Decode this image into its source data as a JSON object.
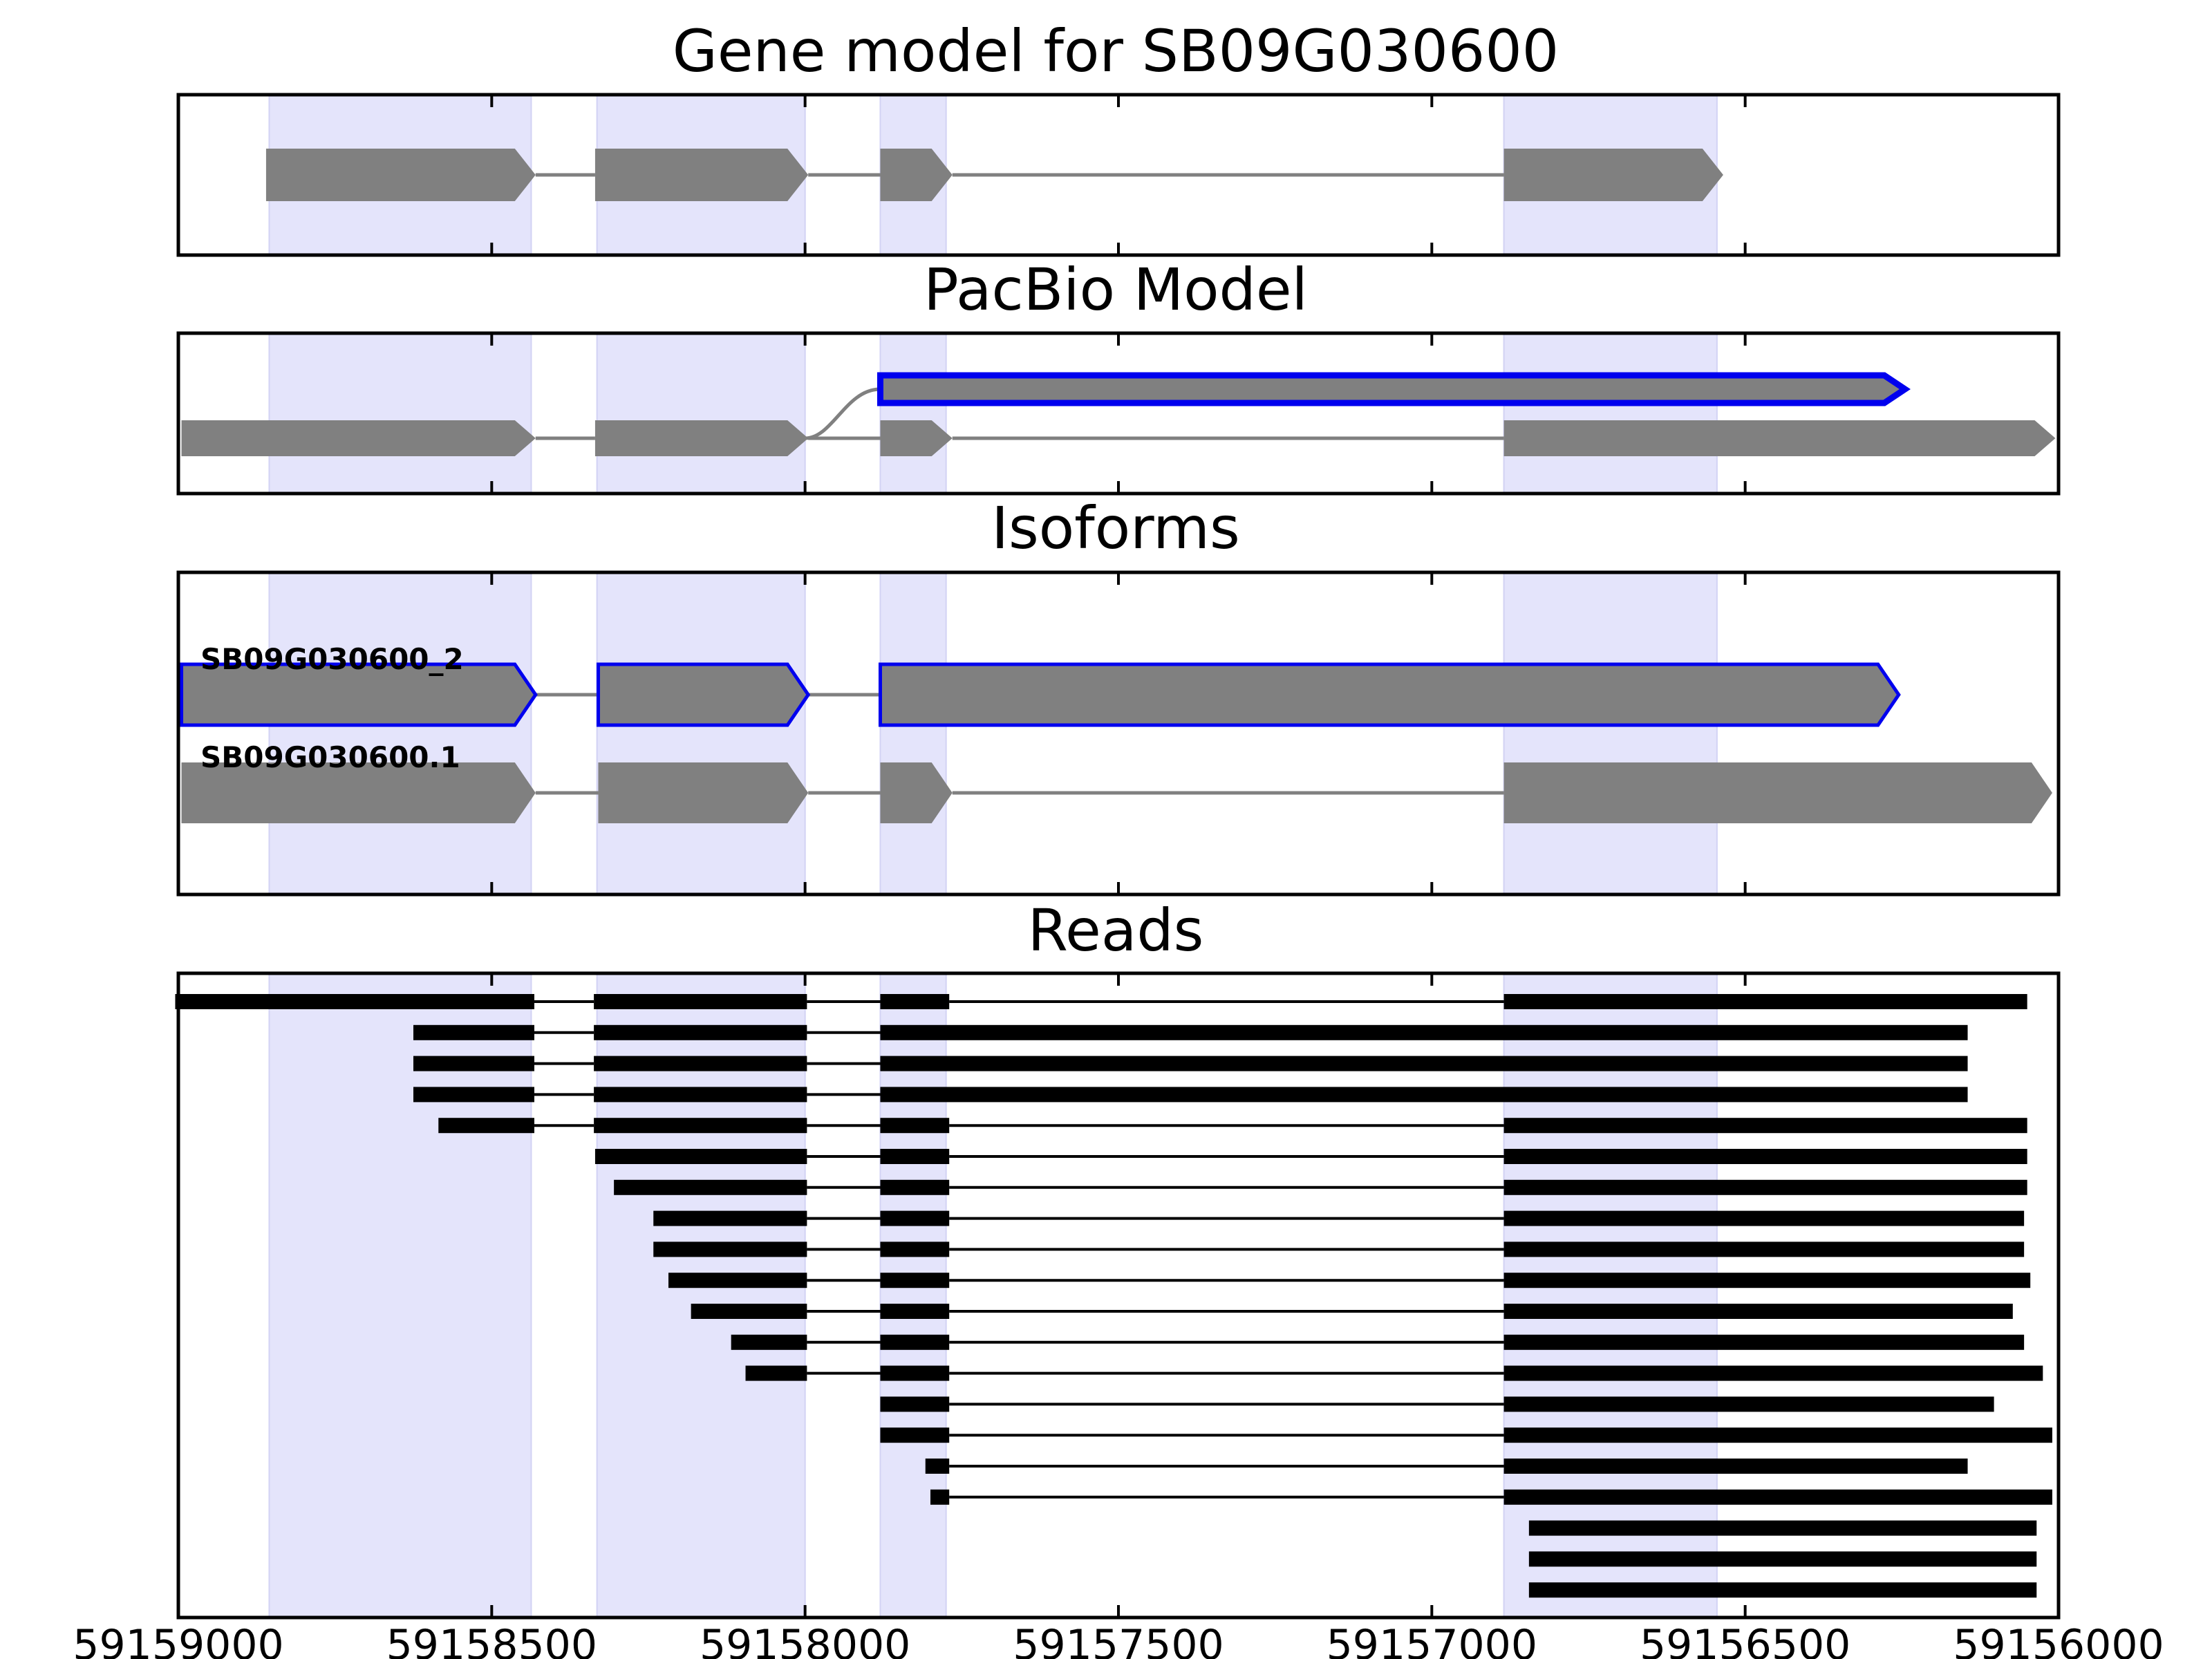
{
  "chart_data": {
    "type": "gene-model",
    "colors": {
      "feature": "#808080",
      "highlight_stroke": "#0000ee",
      "exon_band": "#e4e4fb",
      "read": "#000000",
      "intron": "#808080"
    },
    "xlim": [
      59159000,
      59156000
    ],
    "x_ticks": [
      59159000,
      59158500,
      59158000,
      59157500,
      59157000,
      59156500,
      59156000
    ],
    "x_tick_labels": [
      "59159000",
      "59158500",
      "59158000",
      "59157500",
      "59157000",
      "59156500",
      "59156000"
    ],
    "exon_bands": [
      [
        59158855,
        59158437
      ],
      [
        59158332,
        59158000
      ],
      [
        59157880,
        59157775
      ],
      [
        59156885,
        59156545
      ]
    ],
    "panels": [
      {
        "title": "Gene model for SB09G030600",
        "tracks": [
          {
            "exons": [
              [
                59158860,
                59158430
              ],
              [
                59158335,
                59157995
              ],
              [
                59157880,
                59157765
              ],
              [
                59156885,
                59156535
              ]
            ]
          }
        ]
      },
      {
        "title": "PacBio Model",
        "tracks": [
          {
            "exons": [
              [
                59157880,
                59156245
              ]
            ],
            "highlight": true,
            "curve_from": 59158000
          },
          {
            "exons": [
              [
                59158995,
                59158430
              ],
              [
                59158335,
                59157995
              ],
              [
                59157880,
                59157765
              ],
              [
                59156885,
                59156005
              ]
            ]
          }
        ]
      },
      {
        "title": "Isoforms",
        "tracks": [
          {
            "label": "SB09G030600_2",
            "exons": [
              [
                59158995,
                59158430
              ],
              [
                59158330,
                59157995
              ],
              [
                59157880,
                59156255
              ]
            ],
            "highlight": true
          },
          {
            "label": "SB09G030600.1",
            "exons": [
              [
                59158995,
                59158430
              ],
              [
                59158330,
                59157995
              ],
              [
                59157880,
                59157765
              ],
              [
                59156885,
                59156010
              ]
            ]
          }
        ]
      },
      {
        "title": "Reads",
        "reads": [
          [
            [
              59159005,
              59158432
            ],
            [
              59158337,
              59157997
            ],
            [
              59157880,
              59157770
            ],
            [
              59156885,
              59156050
            ]
          ],
          [
            [
              59158625,
              59158432
            ],
            [
              59158337,
              59157997
            ],
            [
              59157880,
              59156145
            ]
          ],
          [
            [
              59158625,
              59158432
            ],
            [
              59158337,
              59157997
            ],
            [
              59157880,
              59156145
            ]
          ],
          [
            [
              59158625,
              59158432
            ],
            [
              59158337,
              59157997
            ],
            [
              59157880,
              59156145
            ]
          ],
          [
            [
              59158585,
              59158432
            ],
            [
              59158337,
              59157997
            ],
            [
              59157880,
              59157770
            ],
            [
              59156885,
              59156050
            ]
          ],
          [
            [
              59158335,
              59157997
            ],
            [
              59157880,
              59157770
            ],
            [
              59156885,
              59156050
            ]
          ],
          [
            [
              59158305,
              59157997
            ],
            [
              59157880,
              59157770
            ],
            [
              59156885,
              59156050
            ]
          ],
          [
            [
              59158242,
              59157997
            ],
            [
              59157880,
              59157770
            ],
            [
              59156885,
              59156055
            ]
          ],
          [
            [
              59158242,
              59157997
            ],
            [
              59157880,
              59157770
            ],
            [
              59156885,
              59156055
            ]
          ],
          [
            [
              59158218,
              59157997
            ],
            [
              59157880,
              59157770
            ],
            [
              59156885,
              59156045
            ]
          ],
          [
            [
              59158182,
              59157997
            ],
            [
              59157880,
              59157770
            ],
            [
              59156885,
              59156073
            ]
          ],
          [
            [
              59158118,
              59157997
            ],
            [
              59157880,
              59157770
            ],
            [
              59156885,
              59156055
            ]
          ],
          [
            [
              59158095,
              59157997
            ],
            [
              59157880,
              59157770
            ],
            [
              59156885,
              59156025
            ]
          ],
          [
            [
              59157880,
              59157770
            ],
            [
              59156885,
              59156103
            ]
          ],
          [
            [
              59157880,
              59157770
            ],
            [
              59156885,
              59156010
            ]
          ],
          [
            [
              59157808,
              59157770
            ],
            [
              59156885,
              59156145
            ]
          ],
          [
            [
              59157800,
              59157770
            ],
            [
              59156885,
              59156010
            ]
          ],
          [
            [
              59156845,
              59156035
            ]
          ],
          [
            [
              59156845,
              59156035
            ]
          ],
          [
            [
              59156845,
              59156035
            ]
          ]
        ]
      }
    ]
  }
}
